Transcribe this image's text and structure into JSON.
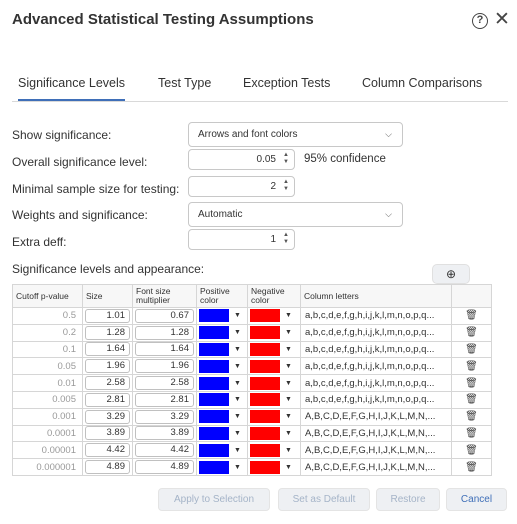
{
  "dialog": {
    "title": "Advanced Statistical Testing Assumptions"
  },
  "tabs": [
    {
      "label": "Significance Levels"
    },
    {
      "label": "Test Type"
    },
    {
      "label": "Exception Tests"
    },
    {
      "label": "Column Comparisons"
    }
  ],
  "form": {
    "show_significance": {
      "label": "Show significance:",
      "value": "Arrows and font colors"
    },
    "overall_level": {
      "label": "Overall significance level:",
      "value": "0.05",
      "confidence": "95% confidence"
    },
    "min_sample": {
      "label": "Minimal sample size for testing:",
      "value": "2"
    },
    "weights": {
      "label": "Weights and significance:",
      "value": "Automatic"
    },
    "extra_deff": {
      "label": "Extra deff:",
      "value": "1"
    }
  },
  "table": {
    "section_label": "Significance levels and appearance:",
    "headers": {
      "cutoff": "Cutoff p-value",
      "size": "Size",
      "font_mult": "Font size multiplier",
      "positive": "Positive color",
      "negative": "Negative color",
      "letters": "Column letters"
    },
    "rows": [
      {
        "cutoff": "0.5",
        "size": "1.01",
        "font_mult": "0.67",
        "letters": "a,b,c,d,e,f,g,h,i,j,k,l,m,n,o,p,q..."
      },
      {
        "cutoff": "0.2",
        "size": "1.28",
        "font_mult": "1.28",
        "letters": "a,b,c,d,e,f,g,h,i,j,k,l,m,n,o,p,q..."
      },
      {
        "cutoff": "0.1",
        "size": "1.64",
        "font_mult": "1.64",
        "letters": "a,b,c,d,e,f,g,h,i,j,k,l,m,n,o,p,q..."
      },
      {
        "cutoff": "0.05",
        "size": "1.96",
        "font_mult": "1.96",
        "letters": "a,b,c,d,e,f,g,h,i,j,k,l,m,n,o,p,q..."
      },
      {
        "cutoff": "0.01",
        "size": "2.58",
        "font_mult": "2.58",
        "letters": "a,b,c,d,e,f,g,h,i,j,k,l,m,n,o,p,q..."
      },
      {
        "cutoff": "0.005",
        "size": "2.81",
        "font_mult": "2.81",
        "letters": "a,b,c,d,e,f,g,h,i,j,k,l,m,n,o,p,q..."
      },
      {
        "cutoff": "0.001",
        "size": "3.29",
        "font_mult": "3.29",
        "letters": "A,B,C,D,E,F,G,H,I,J,K,L,M,N,..."
      },
      {
        "cutoff": "0.0001",
        "size": "3.89",
        "font_mult": "3.89",
        "letters": "A,B,C,D,E,F,G,H,I,J,K,L,M,N,..."
      },
      {
        "cutoff": "0.00001",
        "size": "4.42",
        "font_mult": "4.42",
        "letters": "A,B,C,D,E,F,G,H,I,J,K,L,M,N,..."
      },
      {
        "cutoff": "0.000001",
        "size": "4.89",
        "font_mult": "4.89",
        "letters": "A,B,C,D,E,F,G,H,I,J,K,L,M,N,..."
      }
    ]
  },
  "colors": {
    "positive": "#0000ff",
    "negative": "#ff0000",
    "accent": "#3f6fb8"
  },
  "icons": {
    "help": "help-icon",
    "close": "close-icon",
    "add": "add-circle-icon",
    "delete": "trash-icon"
  },
  "footer": {
    "apply": "Apply to Selection",
    "set_default": "Set as Default",
    "restore": "Restore",
    "cancel": "Cancel"
  }
}
